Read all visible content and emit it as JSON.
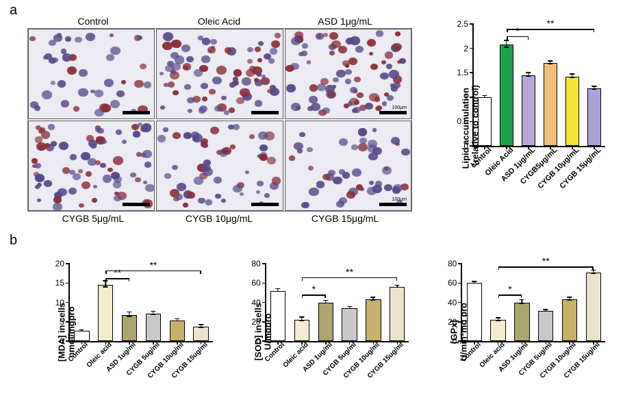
{
  "panel_labels": {
    "a": "a",
    "b": "b"
  },
  "micro": {
    "top_labels": [
      "Control",
      "Oleic Acid",
      "ASD 1μg/mL"
    ],
    "bottom_labels": [
      "CYGB 5μg/mL",
      "CYGB 10μg/mL",
      "CYGB 15μg/mL"
    ],
    "scale_label": "100μm",
    "cell_densities": [
      0.4,
      0.9,
      0.95,
      0.85,
      0.6,
      0.45
    ],
    "nucleus_color": "#5a4a8a",
    "lipid_color": "#8b2e3a",
    "bg_color": "#eceaf2"
  },
  "chartA": {
    "type": "bar",
    "ylabel": "Lipid accumulation\n（relative to control)",
    "ylim": [
      0,
      2.5
    ],
    "yticks": [
      0,
      0.5,
      1.0,
      1.5,
      2.0,
      2.5
    ],
    "categories": [
      "control",
      "Oleic Acid",
      "ASD 1μg/mL",
      "CYGB5μg/mL",
      "CYGB 10μg/mL",
      "CYGB 15μg/mL"
    ],
    "values": [
      1.0,
      2.08,
      1.45,
      1.7,
      1.42,
      1.18
    ],
    "errors": [
      0.03,
      0.08,
      0.05,
      0.04,
      0.05,
      0.04
    ],
    "colors": [
      "#ffffff",
      "#1fa04a",
      "#b9a6d6",
      "#f3c07a",
      "#f7e437",
      "#a8a2d8"
    ],
    "bar_width": 0.62,
    "sig": [
      {
        "from": 1,
        "to": 2,
        "label": "*",
        "y": 2.25
      },
      {
        "from": 1,
        "to": 5,
        "label": "**",
        "y": 2.4
      }
    ],
    "label_fontsize": 12
  },
  "chartsB": [
    {
      "type": "bar",
      "ylabel": "[MDA] in cells\nnmol/mgpro",
      "ylim": [
        0,
        20
      ],
      "yticks": [
        0,
        5,
        10,
        15,
        20
      ],
      "categories": [
        "Control",
        "Oleic acid",
        "ASD 1ug/ml",
        "CYGB 5ug/ml",
        "CYGB 10ug/ml",
        "CYGB 15ug/ml"
      ],
      "values": [
        2.6,
        14.6,
        6.8,
        7.1,
        5.3,
        3.7
      ],
      "errors": [
        0.3,
        0.9,
        0.7,
        0.6,
        0.4,
        0.5
      ],
      "colors": [
        "#ffffff",
        "#f4eccf",
        "#aba56f",
        "#c8c7c9",
        "#c7b06a",
        "#e9e4cb"
      ],
      "bar_width": 0.64,
      "sig": [
        {
          "from": 1,
          "to": 2,
          "label": "**",
          "y": 16.2
        },
        {
          "from": 1,
          "to": 5,
          "label": "**",
          "y": 18.3
        }
      ]
    },
    {
      "type": "bar",
      "ylabel": "[SOD] in cells\nU/mgpro",
      "ylim": [
        0,
        80
      ],
      "yticks": [
        0,
        20,
        40,
        60,
        80
      ],
      "categories": [
        "Control",
        "Oleic acid",
        "ASD 1ug/ml",
        "CYGB 5ug/ml",
        "CYGB 10ug/ml",
        "CYGB 15ug/ml"
      ],
      "values": [
        52,
        22,
        40,
        34,
        43,
        56
      ],
      "errors": [
        2,
        2.5,
        2,
        1.5,
        2,
        1.5
      ],
      "colors": [
        "#ffffff",
        "#f4eccf",
        "#aba56f",
        "#c8c7c9",
        "#c7b06a",
        "#e9e4cb"
      ],
      "bar_width": 0.64,
      "sig": [
        {
          "from": 1,
          "to": 2,
          "label": "*",
          "y": 48
        },
        {
          "from": 1,
          "to": 5,
          "label": "**",
          "y": 66
        }
      ]
    },
    {
      "type": "bar",
      "ylabel": "[GPx]\nU/min*mg pro",
      "ylim": [
        0,
        80
      ],
      "yticks": [
        0,
        20,
        40,
        60,
        80
      ],
      "categories": [
        "Control",
        "Oleic acid",
        "ASD 1ug/ml",
        "CYGB 5ug/ml",
        "CYGB 10ug/ml",
        "CYGB 15ug/ml"
      ],
      "values": [
        60,
        22,
        40,
        31,
        43,
        71
      ],
      "errors": [
        1.5,
        2,
        2.5,
        1.5,
        2,
        2
      ],
      "colors": [
        "#ffffff",
        "#f4eccf",
        "#aba56f",
        "#c8c7c9",
        "#c7b06a",
        "#e9e4cb"
      ],
      "bar_width": 0.64,
      "sig": [
        {
          "from": 1,
          "to": 2,
          "label": "*",
          "y": 48
        },
        {
          "from": 1,
          "to": 5,
          "label": "**",
          "y": 77
        }
      ]
    }
  ]
}
